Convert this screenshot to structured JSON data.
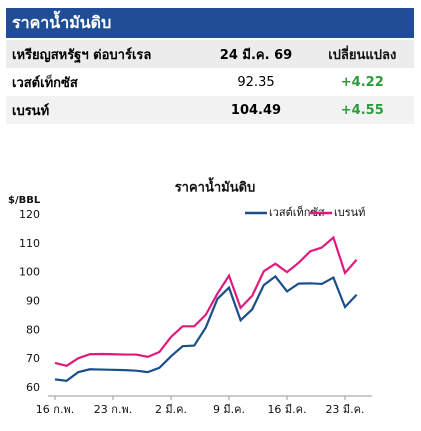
{
  "header": {
    "title": "ราคาน้ำมันดิบ"
  },
  "table": {
    "columns": [
      "เหรียญสหรัฐฯ ต่อบาร์เรล",
      "24 มี.ค. 69",
      "เปลี่ยนแปลง"
    ],
    "rows": [
      [
        "เวสต์เท็กซัส",
        92.35,
        "+4.22"
      ],
      [
        "เบรนท์",
        104.49,
        "+4.55"
      ]
    ]
  },
  "chart_data": {
    "type": "line",
    "title": "ราคาน้ำมันดิบ",
    "y_label": "$/BBL",
    "categories": [
      "16 ก.พ.",
      null,
      null,
      null,
      null,
      "23 ก.พ.",
      null,
      null,
      null,
      null,
      "2 มี.ค.",
      null,
      null,
      null,
      null,
      "9 มี.ค.",
      null,
      null,
      null,
      null,
      "16 มี.ค.",
      null,
      null,
      null,
      null,
      "23 มี.ค.",
      null
    ],
    "series": [
      {
        "name": "เวสต์เท็กซัส",
        "color": "#1b4f8c",
        "values": [
          63,
          62.5,
          65.5,
          66.5,
          66.4,
          66.3,
          66.2,
          66,
          65.5,
          67,
          71,
          74.5,
          74.7,
          81,
          90.9,
          94.8,
          83.5,
          87.3,
          95.7,
          98.7,
          93.5,
          96.2,
          96.3,
          96.1,
          98.3,
          88.1,
          92.35
        ]
      },
      {
        "name": "เบรนท์",
        "color": "#e0197d",
        "values": [
          68.7,
          67.7,
          70.3,
          71.7,
          71.8,
          71.7,
          71.6,
          71.6,
          70.8,
          72.5,
          77.7,
          81.4,
          81.4,
          85.4,
          92.7,
          98.96,
          87.8,
          91.98,
          100.5,
          103.1,
          100.2,
          103.4,
          107.4,
          108.7,
          112.2,
          99.9,
          104.49
        ]
      }
    ],
    "ylim": [
      60,
      120
    ],
    "yticks": [
      60,
      70,
      80,
      90,
      100,
      110,
      120
    ],
    "grid": false,
    "legend": "top-right"
  }
}
